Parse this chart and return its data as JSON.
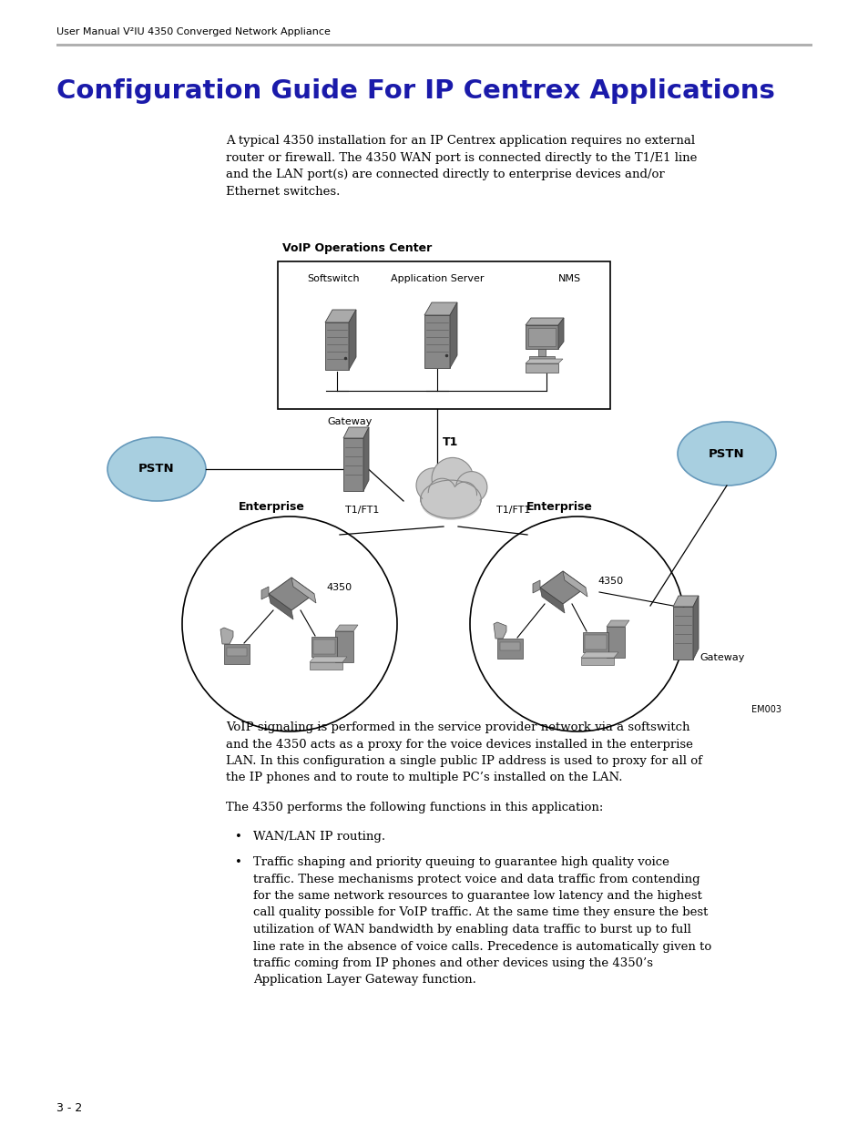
{
  "page_background": "#ffffff",
  "header_text": "User Manual V²IU 4350 Converged Network Appliance",
  "header_color": "#000000",
  "header_fontsize": 8,
  "title_text": "Configuration Guide For IP Centrex Applications",
  "title_color": "#1a1aaa",
  "title_fontsize": 21,
  "body_intro": "A typical 4350 installation for an IP Centrex application requires no external\nrouter or firewall. The 4350 WAN port is connected directly to the T1/E1 line\nand the LAN port(s) are connected directly to enterprise devices and/or\nEthernet switches.",
  "body_intro_fontsize": 10,
  "body_para1": "VoIP signaling is performed in the service provider network via a softswitch\nand the 4350 acts as a proxy for the voice devices installed in the enterprise\nLAN. In this configuration a single public IP address is used to proxy for all of\nthe IP phones and to route to multiple PC’s installed on the LAN.",
  "body_para2": "The 4350 performs the following functions in this application:",
  "bullet1": "WAN/LAN IP routing.",
  "bullet2_lines": [
    "Traffic shaping and priority queuing to guarantee high quality voice",
    "traffic. These mechanisms protect voice and data traffic from contending",
    "for the same network resources to guarantee low latency and the highest",
    "call quality possible for VoIP traffic. At the same time they ensure the best",
    "utilization of WAN bandwidth by enabling data traffic to burst up to full",
    "line rate in the absence of voice calls. Precedence is automatically given to",
    "traffic coming from IP phones and other devices using the 4350’s",
    "Application Layer Gateway function."
  ],
  "footer_text": "3 - 2",
  "footer_fontsize": 9,
  "diagram_label": "VoIP Operations Center",
  "label_softswitch": "Softswitch",
  "label_appserver": "Application Server",
  "label_nms": "NMS",
  "label_gateway": "Gateway",
  "label_t1": "T1",
  "label_pstn": "PSTN",
  "label_enterprise_left": "Enterprise",
  "label_enterprise_right": "Enterprise",
  "label_4350_left": "4350",
  "label_4350_right": "4350",
  "label_t1ft1_left": "T1/FT1",
  "label_t1ft1_right": "T1/FT1",
  "label_gateway_right": "Gateway",
  "label_em": "EM003",
  "pstn_color": "#a8cfe0",
  "cloud_color": "#c8c8c8",
  "box_border": "#000000",
  "diagram_box_color": "#ffffff",
  "server_dark": "#707070",
  "server_mid": "#909090",
  "server_light": "#b0b0b0"
}
